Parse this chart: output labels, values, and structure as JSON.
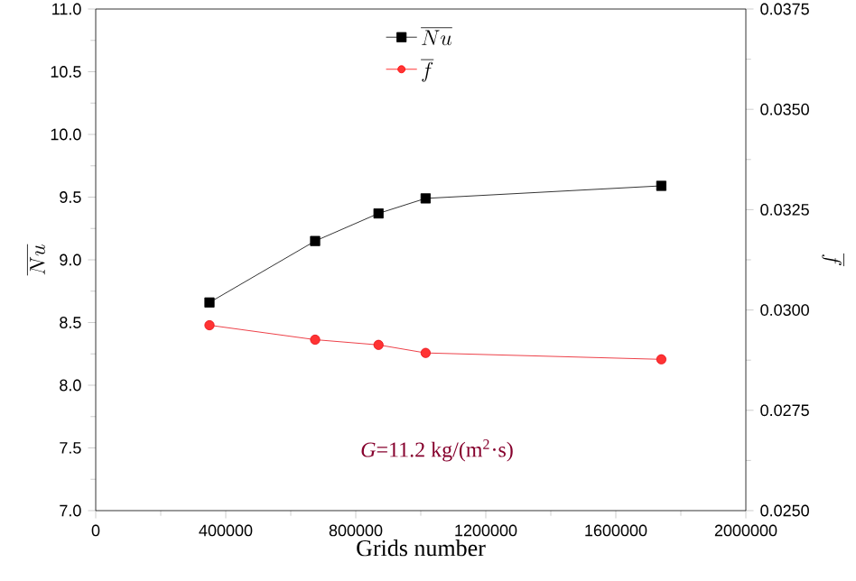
{
  "chart_data": {
    "type": "line",
    "xlabel": "Grids number",
    "ylabel": "\\overline{Nu}",
    "y2label": "\\overline{f}",
    "annotations": [
      "*G*=11.2 kg/(m$^{2}$·s)"
    ],
    "xlim": [
      0,
      2000000
    ],
    "xticks": [
      0,
      400000,
      800000,
      1200000,
      1600000,
      2000000
    ],
    "ylim": [
      7.0,
      11.0
    ],
    "yticks": [
      {
        "value": 7.0,
        "label": "7.0"
      },
      {
        "value": 7.5,
        "label": "7.5"
      },
      {
        "value": 8.0,
        "label": "8.0"
      },
      {
        "value": 8.5,
        "label": "8.5"
      },
      {
        "value": 9.0,
        "label": "9.0"
      },
      {
        "value": 9.5,
        "label": "9.5"
      },
      {
        "value": 10.0,
        "label": "10.0"
      },
      {
        "value": 10.5,
        "label": "10.5"
      },
      {
        "value": 11.0,
        "label": "11.0"
      }
    ],
    "y2lim": [
      0.025,
      0.0375
    ],
    "y2ticks": [
      {
        "value": 0.025,
        "label": "0.0250"
      },
      {
        "value": 0.0275,
        "label": "0.0275"
      },
      {
        "value": 0.03,
        "label": "0.0300"
      },
      {
        "value": 0.0325,
        "label": "0.0325"
      },
      {
        "value": 0.035,
        "label": "0.0350"
      },
      {
        "value": 0.0375,
        "label": "0.0375"
      }
    ],
    "x": [
      350000,
      675000,
      870000,
      1015000,
      1740000
    ],
    "legend": "top",
    "grid": false,
    "series": [
      {
        "name": "\\overline{Nu}",
        "color": "#000000",
        "marker": "square",
        "values": [
          8.66,
          9.15,
          9.37,
          9.49,
          9.59
        ]
      },
      {
        "name": "\\overline{f}",
        "color": "#e8101a",
        "marker": "circle",
        "axis": "y2",
        "values": [
          0.02962,
          0.02926,
          0.02913,
          0.02893,
          0.02877
        ]
      }
    ]
  }
}
